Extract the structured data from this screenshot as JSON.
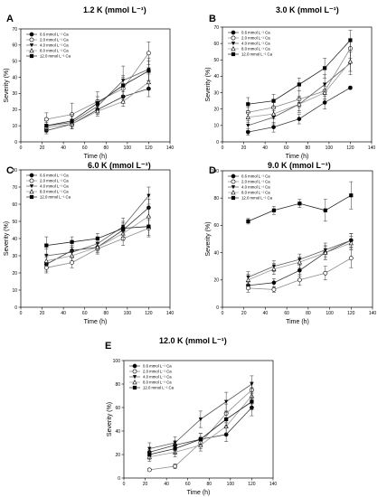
{
  "chart_data": [
    {
      "type": "line",
      "letter": "A",
      "title": "1.2 K (mmol L⁻¹)",
      "xlabel": "Time (h)",
      "ylabel": "Severity (%)",
      "xlim": [
        0,
        140
      ],
      "ylim": [
        0,
        70
      ],
      "xticks": [
        "0",
        "20",
        "40",
        "60",
        "80",
        "100",
        "120",
        "140"
      ],
      "yticks": [
        "0",
        "10",
        "20",
        "30",
        "40",
        "50",
        "60",
        "70"
      ],
      "x": [
        24,
        48,
        72,
        96,
        120
      ],
      "legend_position": "top-left",
      "grid": false,
      "series": [
        {
          "name": "0.6 mmol L⁻¹ Ca",
          "values": [
            7,
            11,
            20,
            28,
            33
          ],
          "errors": [
            2,
            3,
            3,
            3,
            5
          ]
        },
        {
          "name": "2.0 mmol L⁻¹ Ca",
          "values": [
            14,
            17,
            25,
            33,
            55
          ],
          "errors": [
            4,
            7,
            6,
            7,
            7
          ]
        },
        {
          "name": "4.0 mmol L⁻¹ Ca",
          "values": [
            10,
            12,
            22,
            38,
            45
          ],
          "errors": [
            3,
            4,
            4,
            9,
            7
          ]
        },
        {
          "name": "8.0 mmol L⁻¹ Ca",
          "values": [
            9,
            11,
            19,
            25,
            37
          ],
          "errors": [
            3,
            3,
            3,
            3,
            5
          ]
        },
        {
          "name": "12.0 mmol L⁻¹ Ca",
          "values": [
            10,
            13,
            24,
            35,
            44
          ],
          "errors": [
            3,
            4,
            4,
            6,
            6
          ]
        }
      ]
    },
    {
      "type": "line",
      "letter": "B",
      "title": "3.0 K (mmol L⁻¹)",
      "xlabel": "Time (h)",
      "ylabel": "Severity (%)",
      "xlim": [
        0,
        140
      ],
      "ylim": [
        0,
        70
      ],
      "xticks": [
        "0",
        "20",
        "40",
        "60",
        "80",
        "100",
        "120",
        "140"
      ],
      "yticks": [
        "0",
        "10",
        "20",
        "30",
        "40",
        "50",
        "60",
        "70"
      ],
      "x": [
        24,
        48,
        72,
        96,
        120
      ],
      "legend_position": "top-left",
      "grid": false,
      "series": [
        {
          "name": "0.6 mmol L⁻¹ Ca",
          "values": [
            6,
            9,
            14,
            24,
            33
          ],
          "errors": [
            2,
            3,
            3,
            4,
            1
          ]
        },
        {
          "name": "2.0 mmol L⁻¹ Ca",
          "values": [
            18,
            21,
            26,
            31,
            57
          ],
          "errors": [
            3,
            4,
            5,
            5,
            6
          ]
        },
        {
          "name": "4.0 mmol L⁻¹ Ca",
          "values": [
            10,
            15,
            23,
            35,
            48
          ],
          "errors": [
            3,
            4,
            5,
            6,
            7
          ]
        },
        {
          "name": "8.0 mmol L⁻¹ Ca",
          "values": [
            15,
            17,
            23,
            30,
            49
          ],
          "errors": [
            3,
            3,
            4,
            4,
            6
          ]
        },
        {
          "name": "12.0 mmol L⁻¹ Ca",
          "values": [
            23,
            25,
            35,
            45,
            62
          ],
          "errors": [
            4,
            4,
            4,
            6,
            6
          ]
        }
      ]
    },
    {
      "type": "line",
      "letter": "C",
      "title": "6.0 K (mmol L⁻¹)",
      "xlabel": "Time (h)",
      "ylabel": "Severity (%)",
      "xlim": [
        0,
        140
      ],
      "ylim": [
        0,
        80
      ],
      "xticks": [
        "0",
        "20",
        "40",
        "60",
        "80",
        "100",
        "120",
        "140"
      ],
      "yticks": [
        "0",
        "10",
        "20",
        "30",
        "40",
        "50",
        "60",
        "70",
        "80"
      ],
      "x": [
        24,
        48,
        72,
        96,
        120
      ],
      "legend_position": "top-left",
      "grid": false,
      "series": [
        {
          "name": "0.6 mmol L⁻¹ Ca",
          "values": [
            25,
            33,
            35,
            45,
            58
          ],
          "errors": [
            4,
            3,
            3,
            4,
            5
          ]
        },
        {
          "name": "2.0 mmol L⁻¹ Ca",
          "values": [
            23,
            26,
            34,
            40,
            46
          ],
          "errors": [
            3,
            3,
            3,
            4,
            5
          ]
        },
        {
          "name": "4.0 mmol L⁻¹ Ca",
          "values": [
            30,
            32,
            37,
            47,
            65
          ],
          "errors": [
            4,
            3,
            4,
            5,
            5
          ]
        },
        {
          "name": "8.0 mmol L⁻¹ Ca",
          "values": [
            27,
            30,
            35,
            43,
            53
          ],
          "errors": [
            3,
            3,
            3,
            4,
            5
          ]
        },
        {
          "name": "12.0 mmol L⁻¹ Ca",
          "values": [
            36,
            38,
            40,
            46,
            47
          ],
          "errors": [
            5,
            3,
            3,
            4,
            5
          ]
        }
      ]
    },
    {
      "type": "line",
      "letter": "D",
      "title": "9.0 K (mmol L⁻¹)",
      "xlabel": "Time (h)",
      "ylabel": "Severity (%)",
      "xlim": [
        0,
        140
      ],
      "ylim": [
        0,
        100
      ],
      "xticks": [
        "0",
        "20",
        "40",
        "60",
        "80",
        "100",
        "120",
        "140"
      ],
      "yticks": [
        "0",
        "20",
        "40",
        "60",
        "80",
        "100"
      ],
      "x": [
        24,
        48,
        72,
        96,
        120
      ],
      "legend_position": "top-left",
      "grid": false,
      "series": [
        {
          "name": "0.6 mmol L⁻¹ Ca",
          "values": [
            16,
            18,
            27,
            40,
            49
          ],
          "errors": [
            3,
            3,
            4,
            5,
            5
          ]
        },
        {
          "name": "2.0 mmol L⁻¹ Ca",
          "values": [
            14,
            13,
            20,
            25,
            36
          ],
          "errors": [
            3,
            2,
            4,
            5,
            7
          ]
        },
        {
          "name": "4.0 mmol L⁻¹ Ca",
          "values": [
            22,
            30,
            35,
            42,
            49
          ],
          "errors": [
            4,
            4,
            4,
            5,
            5
          ]
        },
        {
          "name": "8.0 mmol L⁻¹ Ca",
          "values": [
            20,
            28,
            33,
            40,
            47
          ],
          "errors": [
            4,
            4,
            4,
            5,
            5
          ]
        },
        {
          "name": "12.0 mmol L⁻¹ Ca",
          "values": [
            63,
            71,
            76,
            71,
            82
          ],
          "errors": [
            2,
            3,
            3,
            8,
            10
          ]
        }
      ]
    },
    {
      "type": "line",
      "letter": "E",
      "title": "12.0 K (mmol L⁻¹)",
      "xlabel": "Time (h)",
      "ylabel": "Severity (%)",
      "xlim": [
        0,
        140
      ],
      "ylim": [
        0,
        100
      ],
      "xticks": [
        "0",
        "20",
        "40",
        "60",
        "80",
        "100",
        "120",
        "140"
      ],
      "yticks": [
        "0",
        "20",
        "40",
        "60",
        "80",
        "100"
      ],
      "x": [
        24,
        48,
        72,
        96,
        120
      ],
      "legend_position": "top-left",
      "grid": false,
      "series": [
        {
          "name": "0.6 mmol L⁻¹ Ca",
          "values": [
            22,
            28,
            33,
            37,
            60
          ],
          "errors": [
            4,
            4,
            5,
            6,
            7
          ]
        },
        {
          "name": "2.0 mmol L⁻¹ Ca",
          "values": [
            7,
            10,
            30,
            55,
            75
          ],
          "errors": [
            1,
            2,
            5,
            8,
            7
          ]
        },
        {
          "name": "4.0 mmol L⁻¹ Ca",
          "values": [
            25,
            30,
            50,
            65,
            80
          ],
          "errors": [
            5,
            5,
            7,
            8,
            7
          ]
        },
        {
          "name": "8.0 mmol L⁻¹ Ca",
          "values": [
            18,
            22,
            28,
            44,
            70
          ],
          "errors": [
            4,
            4,
            5,
            6,
            7
          ]
        },
        {
          "name": "12.0 mmol L⁻¹ Ca",
          "values": [
            20,
            25,
            33,
            50,
            65
          ],
          "errors": [
            4,
            4,
            5,
            6,
            7
          ]
        }
      ]
    }
  ]
}
